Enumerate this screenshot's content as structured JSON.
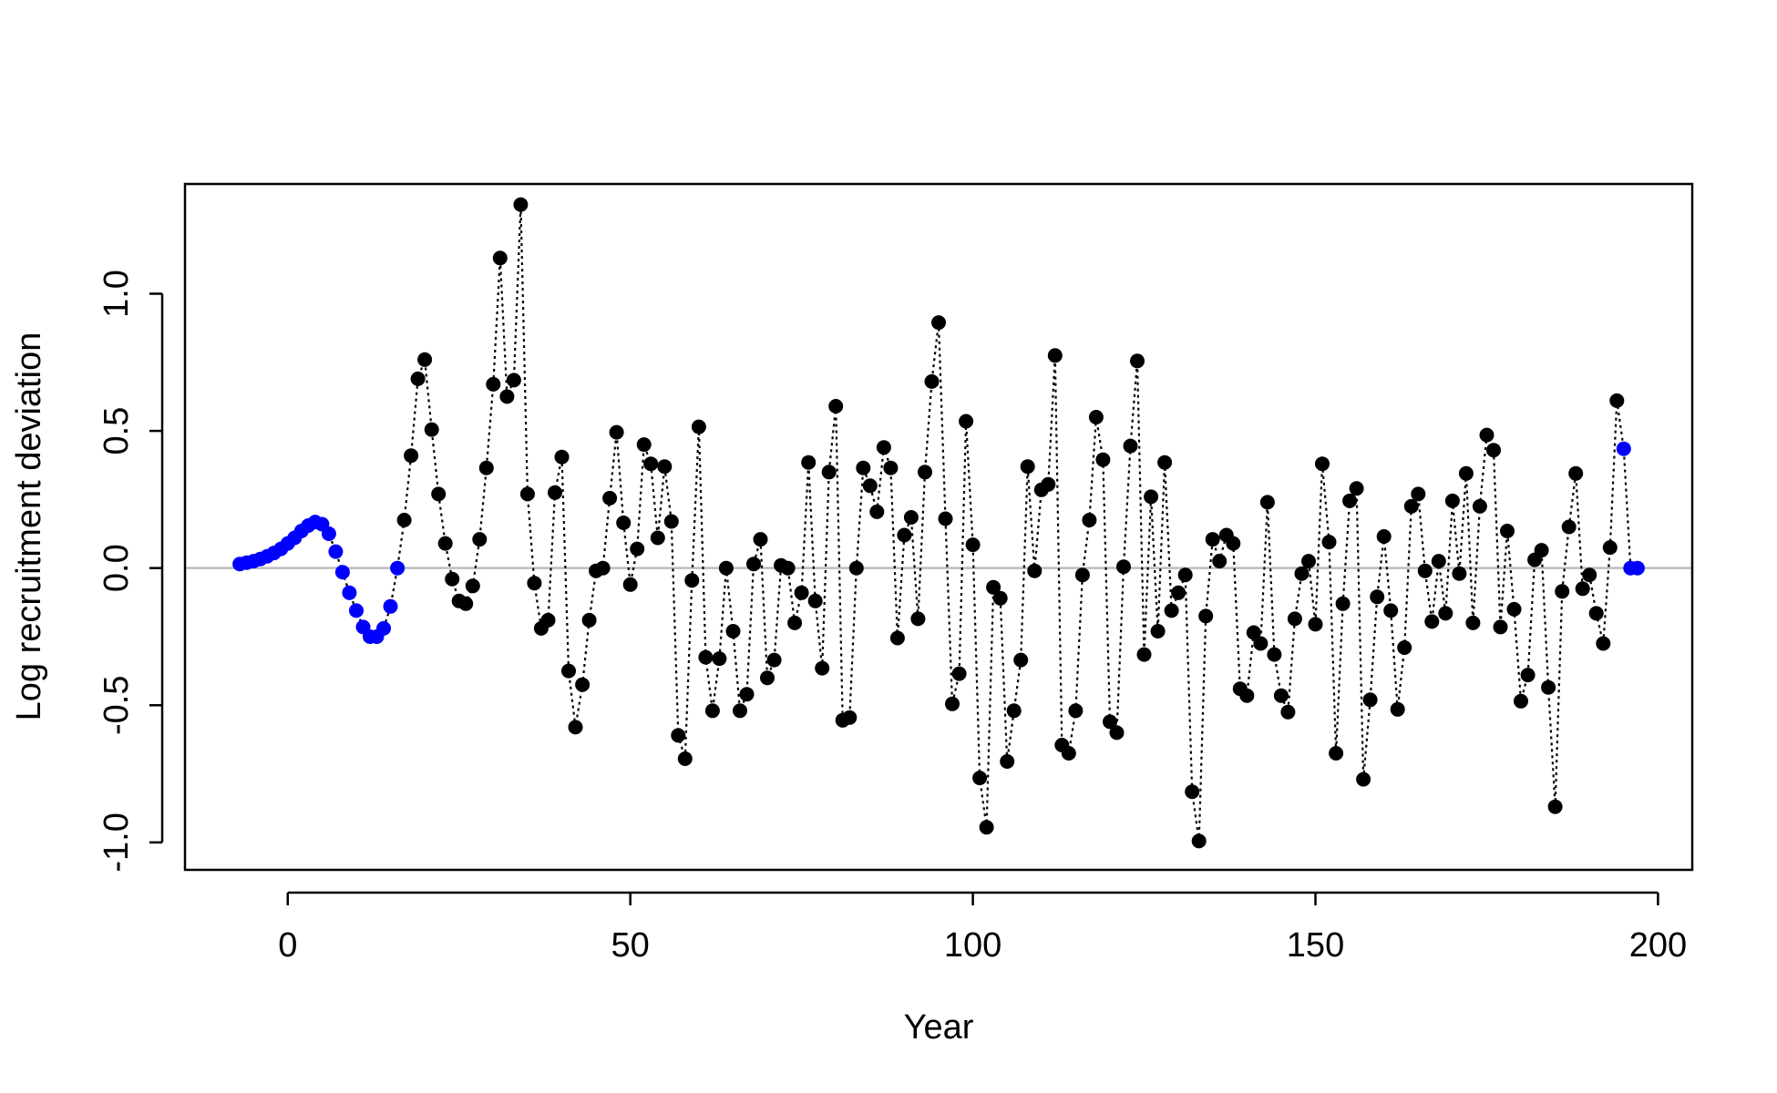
{
  "chart_data": {
    "type": "scatter",
    "xlabel": "Year",
    "ylabel": "Log recruitment deviation",
    "xlim": [
      -15,
      205
    ],
    "ylim": [
      -1.1,
      1.4
    ],
    "xticks": [
      {
        "value": 0,
        "label": "0"
      },
      {
        "value": 50,
        "label": "50"
      },
      {
        "value": 100,
        "label": "100"
      },
      {
        "value": 150,
        "label": "150"
      },
      {
        "value": 200,
        "label": "200"
      }
    ],
    "yticks": [
      {
        "value": -1.0,
        "label": "-1.0"
      },
      {
        "value": -0.5,
        "label": "-0.5"
      },
      {
        "value": 0.0,
        "label": "0.0"
      },
      {
        "value": 0.5,
        "label": "0.5"
      },
      {
        "value": 1.0,
        "label": "1.0"
      }
    ],
    "reference_line_y": 0,
    "colors": {
      "main": "#000000",
      "early_late": "#0000ff",
      "reference": "#bebebe"
    },
    "connector_style": "dotted",
    "series": [
      {
        "color": "#0000ff",
        "x": [
          -7,
          -6,
          -5,
          -4,
          -3,
          -2,
          -1,
          0,
          1,
          2,
          3,
          4,
          5,
          6,
          7,
          8,
          9,
          10,
          11,
          12,
          13,
          14,
          15,
          16
        ],
        "y": [
          0.015,
          0.02,
          0.025,
          0.033,
          0.043,
          0.055,
          0.07,
          0.09,
          0.11,
          0.135,
          0.155,
          0.168,
          0.16,
          0.125,
          0.06,
          -0.015,
          -0.09,
          -0.155,
          -0.215,
          -0.25,
          -0.25,
          -0.22,
          -0.14,
          0.0
        ]
      },
      {
        "color": "#000000",
        "x": [
          17,
          18,
          19,
          20,
          21,
          22,
          23,
          24,
          25,
          26,
          27,
          28,
          29,
          30,
          31,
          32,
          33,
          34,
          35,
          36,
          37,
          38,
          39,
          40,
          41,
          42,
          43,
          44,
          45,
          46,
          47,
          48,
          49,
          50,
          51,
          52,
          53,
          54,
          55,
          56,
          57,
          58,
          59,
          60,
          61,
          62,
          63,
          64,
          65,
          66,
          67,
          68,
          69,
          70,
          71,
          72,
          73,
          74,
          75,
          76,
          77,
          78,
          79,
          80,
          81,
          82,
          83,
          84,
          85,
          86,
          87,
          88,
          89,
          90,
          91,
          92,
          93,
          94,
          95,
          96,
          97,
          98,
          99,
          100,
          101,
          102,
          103,
          104,
          105,
          106,
          107,
          108,
          109,
          110,
          111,
          112,
          113,
          114,
          115,
          116,
          117,
          118,
          119,
          120,
          121,
          122,
          123,
          124,
          125,
          126,
          127,
          128,
          129,
          130,
          131,
          132,
          133,
          134,
          135,
          136,
          137,
          138,
          139,
          140,
          141,
          142,
          143,
          144,
          145,
          146,
          147,
          148,
          149,
          150,
          151,
          152,
          153,
          154,
          155,
          156,
          157,
          158,
          159,
          160,
          161,
          162,
          163,
          164,
          165,
          166,
          167,
          168,
          169,
          170,
          171,
          172,
          173,
          174,
          175,
          176,
          177,
          178,
          179,
          180,
          181,
          182,
          183,
          184,
          185,
          186,
          187,
          188,
          189,
          190,
          191,
          192,
          193,
          194
        ],
        "y": [
          0.175,
          0.41,
          0.69,
          0.76,
          0.505,
          0.27,
          0.09,
          -0.04,
          -0.12,
          -0.13,
          -0.065,
          0.105,
          0.365,
          0.67,
          1.13,
          0.625,
          0.685,
          1.325,
          0.27,
          -0.055,
          -0.22,
          -0.19,
          0.275,
          0.405,
          -0.375,
          -0.58,
          -0.425,
          -0.19,
          -0.01,
          0.0,
          0.255,
          0.495,
          0.165,
          -0.06,
          0.07,
          0.45,
          0.38,
          0.11,
          0.37,
          0.17,
          -0.61,
          -0.695,
          -0.045,
          0.515,
          -0.325,
          -0.52,
          -0.33,
          0.0,
          -0.23,
          -0.52,
          -0.46,
          0.015,
          0.105,
          -0.4,
          -0.335,
          0.01,
          0.0,
          -0.2,
          -0.09,
          0.385,
          -0.12,
          -0.365,
          0.35,
          0.59,
          -0.555,
          -0.545,
          0.0,
          0.365,
          0.3,
          0.205,
          0.44,
          0.365,
          -0.255,
          0.12,
          0.185,
          -0.185,
          0.35,
          0.68,
          0.895,
          0.18,
          -0.495,
          -0.385,
          0.535,
          0.085,
          -0.765,
          -0.945,
          -0.07,
          -0.11,
          -0.705,
          -0.52,
          -0.335,
          0.37,
          -0.01,
          0.285,
          0.305,
          0.775,
          -0.645,
          -0.675,
          -0.52,
          -0.025,
          0.175,
          0.55,
          0.395,
          -0.56,
          -0.6,
          0.005,
          0.445,
          0.755,
          -0.315,
          0.26,
          -0.23,
          0.385,
          -0.155,
          -0.09,
          -0.025,
          -0.815,
          -0.995,
          -0.175,
          0.105,
          0.025,
          0.12,
          0.09,
          -0.44,
          -0.465,
          -0.235,
          -0.275,
          0.24,
          -0.315,
          -0.465,
          -0.525,
          -0.185,
          -0.02,
          0.025,
          -0.205,
          0.38,
          0.095,
          -0.675,
          -0.13,
          0.245,
          0.29,
          -0.77,
          -0.48,
          -0.105,
          0.115,
          -0.155,
          -0.515,
          -0.29,
          0.225,
          0.27,
          -0.01,
          -0.195,
          0.025,
          -0.165,
          0.245,
          -0.02,
          0.345,
          -0.2,
          0.225,
          0.485,
          0.43,
          -0.215,
          0.135,
          -0.15,
          -0.485,
          -0.39,
          0.03,
          0.065,
          -0.435,
          -0.87,
          -0.085,
          0.15,
          0.345,
          -0.075,
          -0.025,
          -0.165,
          -0.275,
          0.075,
          0.61
        ]
      },
      {
        "color": "#0000ff",
        "x": [
          195,
          196,
          197
        ],
        "y": [
          0.435,
          0.0,
          0.0
        ]
      }
    ]
  }
}
